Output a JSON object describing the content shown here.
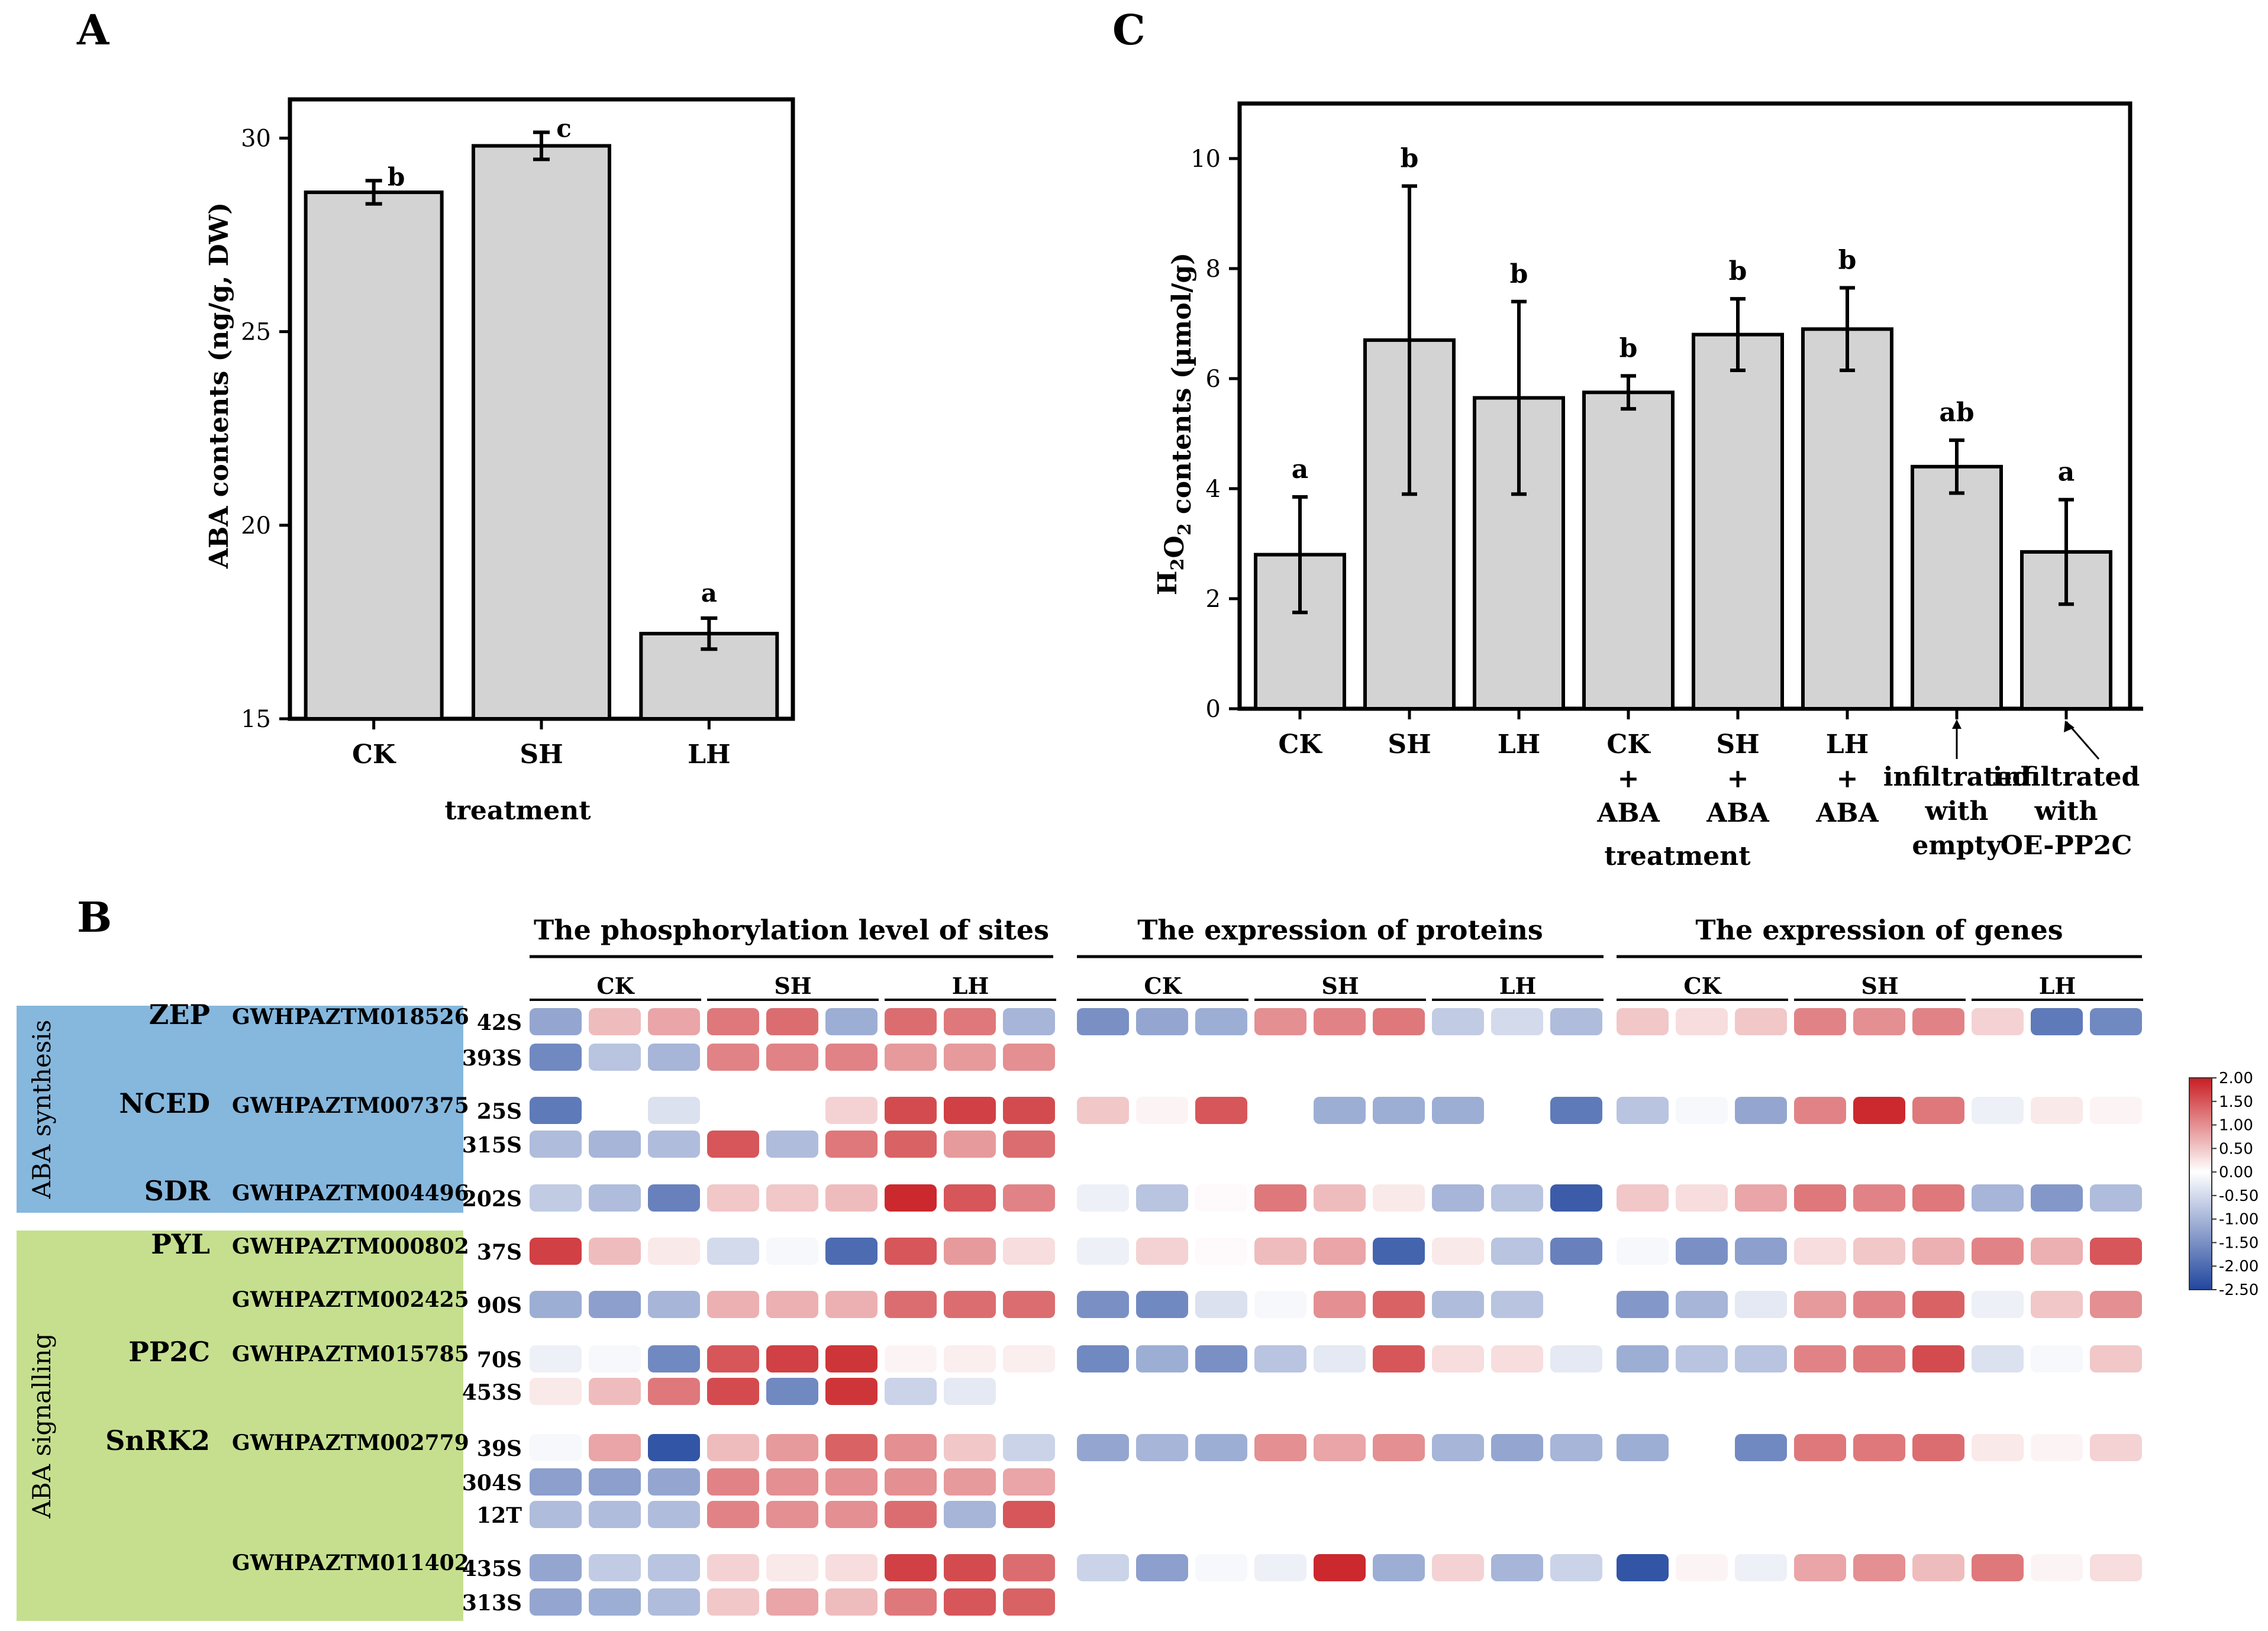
{
  "panel_labels": {
    "a": "A",
    "b": "B",
    "c": "C"
  },
  "chart_data": [
    {
      "panel": "A",
      "type": "bar",
      "xlabel": "treatment",
      "ylabel": "ABA contents (ng/g, DW)",
      "categories": [
        "CK",
        "SH",
        "LH"
      ],
      "values": [
        28.6,
        29.8,
        17.2
      ],
      "errors": [
        0.3,
        0.35,
        0.4
      ],
      "letters": [
        "b",
        "c",
        "a"
      ],
      "ylim": [
        15,
        31
      ],
      "yticks": [
        15,
        20,
        25,
        30
      ]
    },
    {
      "panel": "C",
      "type": "bar",
      "xlabel": "treatment",
      "ylabel_main": "H",
      "ylabel_sub": "2",
      "ylabel_mid": "O",
      "ylabel_sub2": "2",
      "ylabel_rest": " contents (µmol/g)",
      "categories": [
        [
          "CK"
        ],
        [
          "SH"
        ],
        [
          "LH"
        ],
        [
          "CK",
          "+",
          "ABA"
        ],
        [
          "SH",
          "+",
          "ABA"
        ],
        [
          "LH",
          "+",
          "ABA"
        ],
        [
          "infiltrated",
          "with",
          "empty"
        ],
        [
          "infiltrated",
          "with",
          "OE-PP2C"
        ]
      ],
      "values": [
        2.8,
        6.7,
        5.65,
        5.75,
        6.8,
        6.9,
        4.4,
        2.85
      ],
      "errors": [
        1.05,
        2.8,
        1.75,
        0.3,
        0.65,
        0.75,
        0.48,
        0.95
      ],
      "letters": [
        "a",
        "b",
        "b",
        "b",
        "b",
        "b",
        "ab",
        "a"
      ],
      "ylim": [
        0,
        11
      ],
      "yticks": [
        0,
        2,
        4,
        6,
        8,
        10
      ]
    },
    {
      "panel": "B",
      "type": "heatmap",
      "group_headers": [
        "The phosphorylation level of sites",
        "The expression of proteins",
        "The expression of genes"
      ],
      "sub_headers": [
        "CK",
        "SH",
        "LH"
      ],
      "side_labels": [
        "ABA synthesis",
        "ABA signalling"
      ],
      "colorbar_ticks": [
        "2.00",
        "1.50",
        "1.00",
        "0.50",
        "0.00",
        "-0.50",
        "-1.00",
        "-1.50",
        "-2.00",
        "-2.50"
      ],
      "colorbar_range": [
        -2.5,
        2.0
      ],
      "rows": [
        {
          "name": "ZEP",
          "gene": "GWHPAZTM018526",
          "site": "42S",
          "phos": [
            -1.2,
            0.6,
            0.8,
            1.2,
            1.3,
            -1.1,
            1.3,
            1.2,
            -1.0
          ],
          "prot": [
            -1.5,
            -1.2,
            -1.1,
            1.0,
            1.1,
            1.2,
            -0.7,
            -0.5,
            -0.9
          ],
          "gene_vals": [
            0.5,
            0.3,
            0.5,
            1.1,
            1.0,
            1.1,
            0.4,
            -1.8,
            -1.6
          ]
        },
        {
          "name": "",
          "gene": "",
          "site": "393S",
          "phos": [
            -1.6,
            -0.8,
            -1.0,
            1.1,
            1.1,
            1.1,
            0.9,
            0.9,
            1.0
          ],
          "prot": null,
          "gene_vals": null
        },
        {
          "name": "NCED",
          "gene": "GWHPAZTM007375",
          "site": "25S",
          "phos": [
            -1.8,
            0.0,
            -0.4,
            0.0,
            0.0,
            0.4,
            1.6,
            1.7,
            1.6
          ],
          "prot": [
            0.5,
            0.1,
            1.5,
            0.0,
            -1.1,
            -1.1,
            -1.1,
            0.0,
            -1.8
          ],
          "gene_vals": [
            -0.8,
            -0.1,
            -1.2,
            1.1,
            1.9,
            1.2,
            -0.2,
            0.2,
            0.1
          ]
        },
        {
          "name": "",
          "gene": "",
          "site": "315S",
          "phos": [
            -0.9,
            -1.0,
            -0.9,
            1.5,
            -0.9,
            1.2,
            1.4,
            0.9,
            1.3
          ],
          "prot": null,
          "gene_vals": null
        },
        {
          "name": "SDR",
          "gene": "GWHPAZTM004496",
          "site": "202S",
          "phos": [
            -0.7,
            -0.9,
            -1.7,
            0.5,
            0.5,
            0.6,
            1.9,
            1.5,
            1.1
          ],
          "prot": [
            -0.2,
            -0.8,
            0.05,
            1.2,
            0.6,
            0.2,
            -1.0,
            -0.8,
            -2.2
          ],
          "gene_vals": [
            0.5,
            0.3,
            0.8,
            1.2,
            1.1,
            1.2,
            -1.0,
            -1.4,
            -0.9
          ]
        },
        {
          "name": "PYL",
          "gene": "GWHPAZTM000802",
          "site": "37S",
          "phos": [
            1.7,
            0.6,
            0.2,
            -0.5,
            -0.1,
            -2.0,
            1.5,
            0.9,
            0.3
          ],
          "prot": [
            -0.2,
            0.4,
            0.05,
            0.6,
            0.8,
            -2.1,
            0.2,
            -0.8,
            -1.7
          ],
          "gene_vals": [
            -0.1,
            -1.5,
            -1.3,
            0.3,
            0.5,
            0.7,
            1.1,
            0.7,
            1.5
          ]
        },
        {
          "name": "",
          "gene": "GWHPAZTM002425",
          "site": "90S",
          "phos": [
            -1.1,
            -1.3,
            -1.0,
            0.7,
            0.7,
            0.7,
            1.3,
            1.3,
            1.3
          ],
          "prot": [
            -1.5,
            -1.6,
            -0.4,
            -0.1,
            1.0,
            1.4,
            -0.9,
            -0.8,
            0.0
          ],
          "gene_vals": [
            -1.4,
            -1.0,
            -0.3,
            0.9,
            1.1,
            1.4,
            -0.2,
            0.5,
            1.0
          ]
        },
        {
          "name": "PP2C",
          "gene": "GWHPAZTM015785",
          "site": "70S",
          "phos": [
            -0.2,
            -0.1,
            -1.6,
            1.5,
            1.7,
            1.8,
            0.1,
            0.15,
            0.15
          ],
          "prot": [
            -1.6,
            -1.1,
            -1.5,
            -0.8,
            -0.3,
            1.5,
            0.3,
            0.3,
            -0.3
          ],
          "gene_vals": [
            -1.1,
            -0.8,
            -0.8,
            1.1,
            1.2,
            1.6,
            -0.4,
            -0.1,
            0.5
          ]
        },
        {
          "name": "",
          "gene": "",
          "site": "453S",
          "phos": [
            0.2,
            0.6,
            1.2,
            1.6,
            -1.6,
            1.8,
            -0.6,
            -0.3,
            0.0
          ],
          "prot": null,
          "gene_vals": null
        },
        {
          "name": "SnRK2",
          "gene": "GWHPAZTM002779",
          "site": "39S",
          "phos": [
            -0.1,
            0.8,
            -2.3,
            0.6,
            0.9,
            1.4,
            1.0,
            0.5,
            -0.6
          ],
          "prot": [
            -1.2,
            -1.0,
            -1.1,
            1.0,
            0.8,
            1.0,
            -1.0,
            -1.2,
            -1.0
          ],
          "gene_vals": [
            -1.1,
            0.0,
            -1.6,
            1.2,
            1.2,
            1.3,
            0.2,
            0.1,
            0.4
          ]
        },
        {
          "name": "",
          "gene": "",
          "site": "304S",
          "phos": [
            -1.3,
            -1.3,
            -1.2,
            1.1,
            1.0,
            1.0,
            1.0,
            0.9,
            0.8
          ],
          "prot": null,
          "gene_vals": null
        },
        {
          "name": "",
          "gene": "",
          "site": "12T",
          "phos": [
            -0.9,
            -0.9,
            -0.9,
            1.1,
            1.0,
            1.0,
            1.3,
            -1.0,
            1.5
          ],
          "prot": null,
          "gene_vals": null
        },
        {
          "name": "",
          "gene": "GWHPAZTM011402",
          "site": "435S",
          "phos": [
            -1.2,
            -0.7,
            -0.8,
            0.4,
            0.2,
            0.3,
            1.7,
            1.6,
            1.3
          ],
          "prot": [
            -0.6,
            -1.3,
            -0.1,
            -0.2,
            1.9,
            -1.1,
            0.4,
            -1.0,
            -0.6
          ],
          "gene_vals": [
            -2.3,
            0.1,
            -0.2,
            0.8,
            1.0,
            0.6,
            1.2,
            0.1,
            0.3
          ]
        },
        {
          "name": "",
          "gene": "",
          "site": "313S",
          "phos": [
            -1.2,
            -1.1,
            -0.9,
            0.5,
            0.8,
            0.6,
            1.2,
            1.5,
            1.4
          ],
          "prot": null,
          "gene_vals": null
        }
      ]
    }
  ]
}
